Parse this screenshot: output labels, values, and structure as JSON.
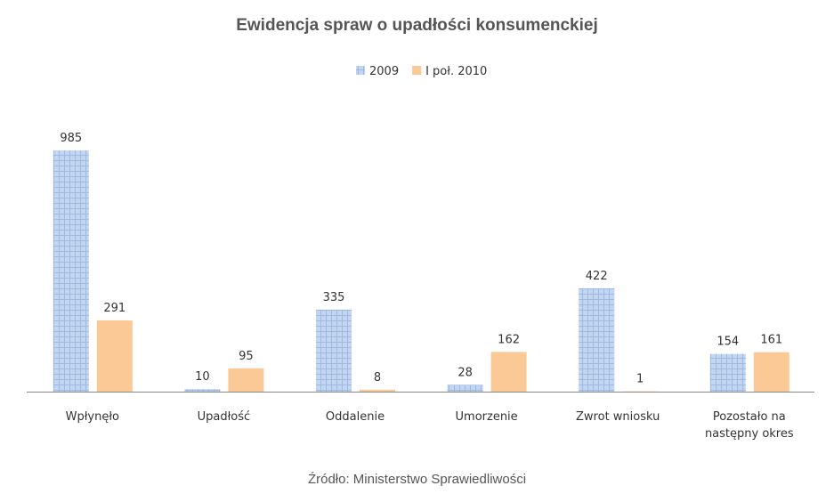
{
  "chart_data": {
    "type": "bar",
    "title": "Ewidencja spraw o upadłości konsumenckiej",
    "categories": [
      "Wpłynęło",
      "Upadłość",
      "Oddalenie",
      "Umorzenie",
      "Zwrot wniosku",
      "Pozostało na|następny okres"
    ],
    "series": [
      {
        "name": "2009",
        "values": [
          985,
          10,
          335,
          28,
          422,
          154
        ],
        "color": "#b8cfee"
      },
      {
        "name": "I poł. 2010",
        "values": [
          291,
          95,
          8,
          162,
          1,
          161
        ],
        "color": "#fac995"
      }
    ],
    "xlabel": "",
    "ylabel": "",
    "ylim": [
      0,
      1000
    ],
    "grid": false,
    "legend": "top",
    "data_labels": true
  },
  "source": "Źródło: Ministerstwo Sprawiedliwości"
}
